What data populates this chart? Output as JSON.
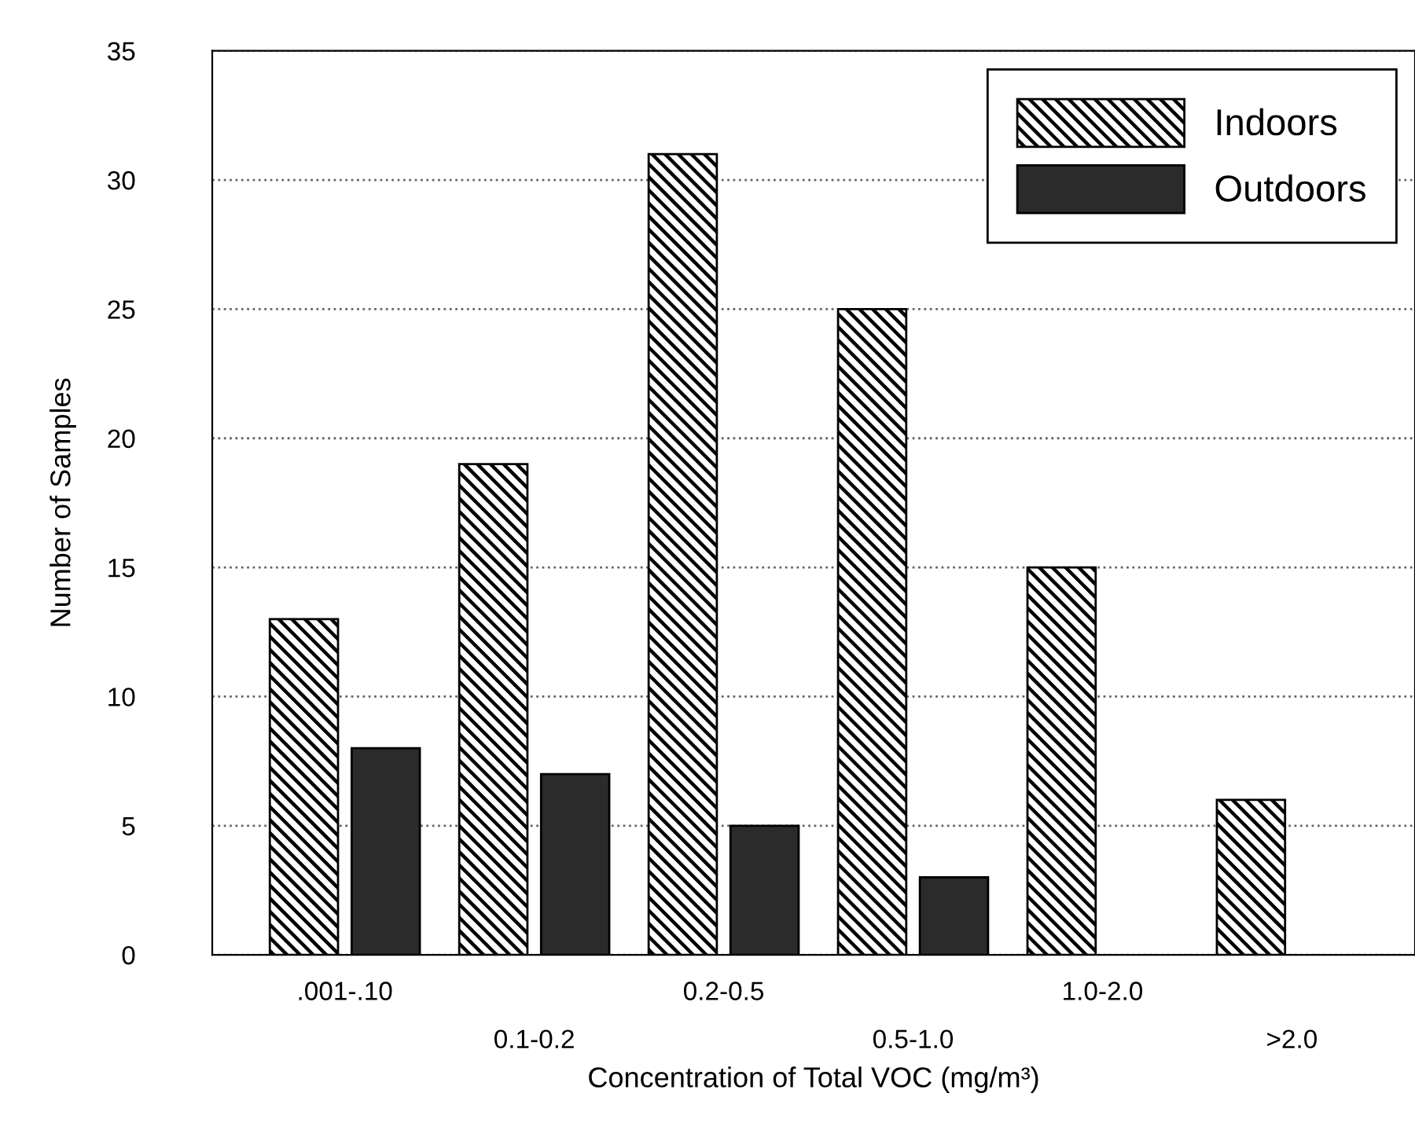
{
  "chart_data": {
    "type": "bar",
    "xlabel": "Concentration of Total VOC (mg/m³)",
    "ylabel": "Number of Samples",
    "categories": [
      ".001-.10",
      "0.1-0.2",
      "0.2-0.5",
      "0.5-1.0",
      "1.0-2.0",
      ">2.0"
    ],
    "series": [
      {
        "name": "Indoors",
        "color": "#000000",
        "values": [
          13,
          19,
          31,
          25,
          15,
          6
        ]
      },
      {
        "name": "Outdoors",
        "color": "#2b2b2b",
        "values": [
          8,
          7,
          5,
          3,
          null,
          null
        ]
      }
    ],
    "ylim": [
      0,
      35
    ],
    "yticks": [
      0,
      5,
      10,
      15,
      20,
      25,
      30,
      35
    ],
    "grid": "y",
    "legend": "top right"
  }
}
